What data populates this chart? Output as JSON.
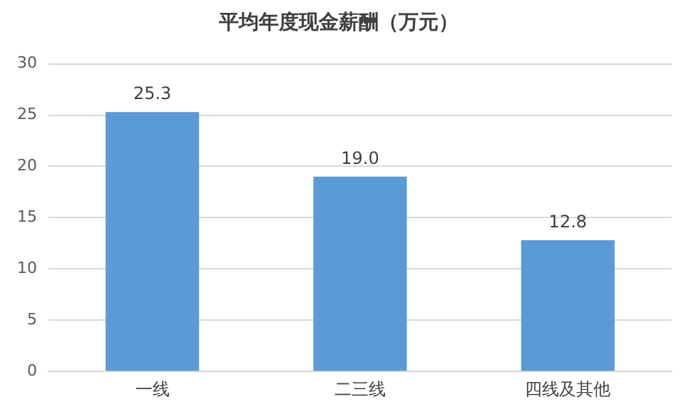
{
  "chart_data": {
    "type": "bar",
    "title": "平均年度现金薪酬（万元）",
    "categories": [
      "一线",
      "二三线",
      "四线及其他"
    ],
    "values": [
      25.3,
      19.0,
      12.8
    ],
    "value_labels": [
      "25.3",
      "19.0",
      "12.8"
    ],
    "color": "#5b9bd5",
    "ylim": [
      0,
      30
    ],
    "yticks": [
      0,
      5,
      10,
      15,
      20,
      25,
      30
    ],
    "grid": "y"
  }
}
